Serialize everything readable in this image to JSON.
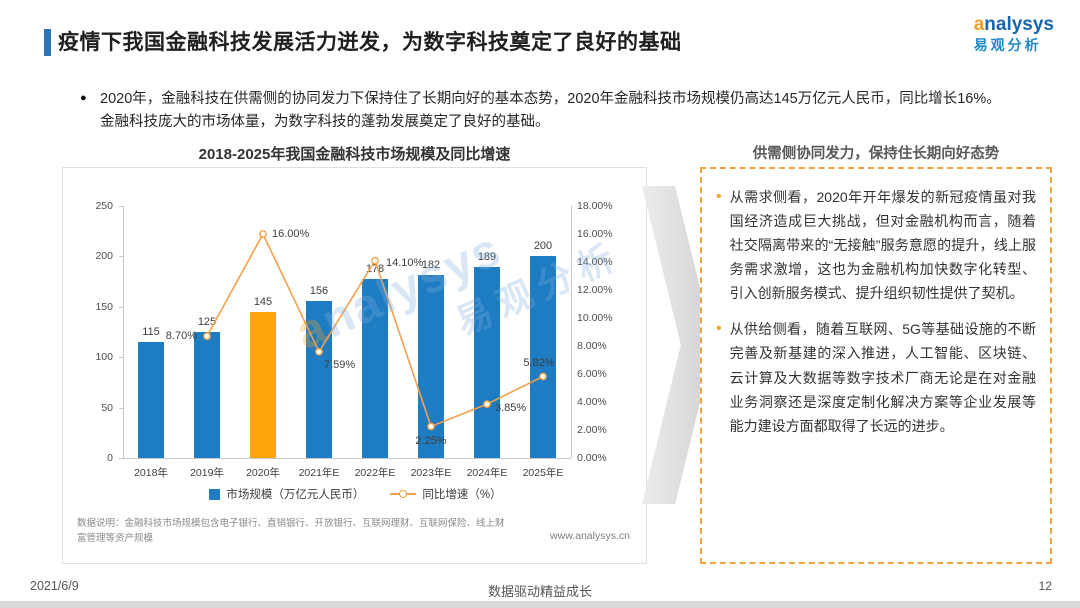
{
  "page": {
    "title": "疫情下我国金融科技发展活力迸发，为数字科技奠定了良好的基础",
    "bullet_glyph": "●",
    "summary": "2020年，金融科技在供需侧的协同发力下保持住了长期向好的基本态势，2020年金融科技市场规模仍高达145万亿元人民币，同比增长16%。金融科技庞大的市场体量，为数字科技的蓬勃发展奠定了良好的基础。",
    "footer": {
      "date": "2021/6/9",
      "slogan": "数据驱动精益成长",
      "page_number": "12"
    }
  },
  "logo": {
    "brand_initial": "a",
    "brand_rest": "nalysys",
    "brand_cn": "易观分析"
  },
  "watermark": {
    "initial": "a",
    "rest": "nalysys",
    "cn": "易观分析"
  },
  "chart": {
    "note": "数据说明：金融科技市场规模包含电子银行、直销银行、开放银行、互联网理财、互联网保险、线上财富管理等资产规模",
    "source": "www.analysys.cn"
  },
  "chart_data": {
    "type": "bar",
    "combo": "bar+line",
    "title": "2018-2025年我国金融科技市场规模及同比增速",
    "categories": [
      "2018年",
      "2019年",
      "2020年",
      "2021年E",
      "2022年E",
      "2023年E",
      "2024年E",
      "2025年E"
    ],
    "series": [
      {
        "name": "市场规模（万亿元人民币）",
        "type": "bar",
        "values": [
          115,
          125,
          145,
          156,
          178,
          182,
          189,
          200
        ],
        "color": "#1E7CC2",
        "highlight_index": 2,
        "highlight_color": "#FFA40B"
      },
      {
        "name": "同比增速（%）",
        "type": "line",
        "values": [
          null,
          8.7,
          16.0,
          7.59,
          14.1,
          2.25,
          3.85,
          5.82
        ],
        "color": "#F4A04A"
      }
    ],
    "left_axis": {
      "min": 0,
      "max": 250,
      "step": 50
    },
    "right_axis": {
      "min": 0,
      "max": 18,
      "step": 2,
      "unit": "%"
    },
    "gridlines": false,
    "legend_position": "bottom"
  },
  "panel": {
    "title": "供需侧协同发力，保持住长期向好态势",
    "bullet_glyph": "•",
    "bullets": [
      "从需求侧看，2020年开年爆发的新冠疫情虽对我国经济造成巨大挑战，但对金融机构而言，随着社交隔离带来的“无接触”服务意愿的提升，线上服务需求激增，这也为金融机构加快数字化转型、引入创新服务模式、提升组织韧性提供了契机。",
      "从供给侧看，随着互联网、5G等基础设施的不断完善及新基建的深入推进，人工智能、区块链、云计算及大数据等数字技术厂商无论是在对金融业务洞察还是深度定制化解决方案等企业发展等能力建设方面都取得了长远的进步。"
    ]
  }
}
